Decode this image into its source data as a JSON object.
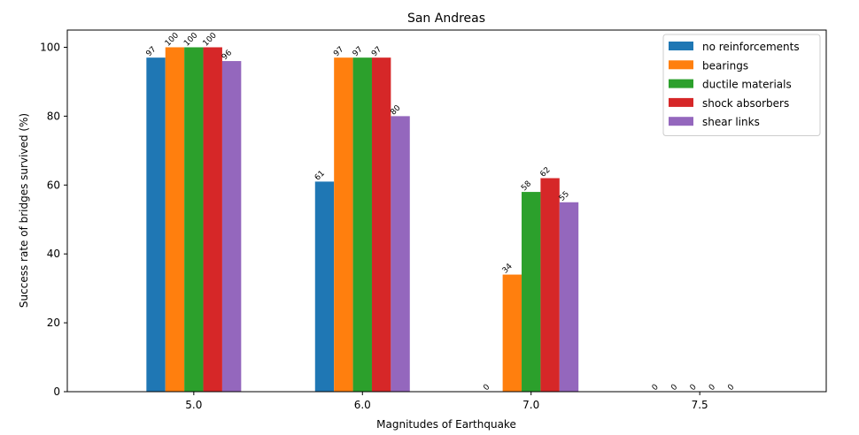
{
  "chart_data": {
    "type": "bar",
    "title": "San Andreas",
    "xlabel": "Magnitudes of Earthquake",
    "ylabel": "Success rate of bridges survived (%)",
    "categories": [
      "5.0",
      "6.0",
      "7.0",
      "7.5"
    ],
    "yticks": [
      "0",
      "20",
      "40",
      "60",
      "80",
      "100"
    ],
    "ylim": [
      0,
      105
    ],
    "legend_position": "top-right",
    "grid": false,
    "series": [
      {
        "name": "no reinforcements",
        "color": "#1f77b4",
        "values": [
          97,
          61,
          0,
          0
        ],
        "labels": [
          "97",
          "61",
          "0",
          "0"
        ]
      },
      {
        "name": "bearings",
        "color": "#ff7f0e",
        "values": [
          100,
          97,
          34,
          0
        ],
        "labels": [
          "100",
          "97",
          "34",
          "0"
        ]
      },
      {
        "name": "ductile materials",
        "color": "#2ca02c",
        "values": [
          100,
          97,
          58,
          0
        ],
        "labels": [
          "100",
          "97",
          "58",
          "0"
        ]
      },
      {
        "name": "shock absorbers",
        "color": "#d62728",
        "values": [
          100,
          97,
          62,
          0
        ],
        "labels": [
          "100",
          "97",
          "62",
          "0"
        ]
      },
      {
        "name": "shear links",
        "color": "#9467bd",
        "values": [
          96,
          80,
          55,
          0
        ],
        "labels": [
          "96",
          "80",
          "55",
          "0"
        ]
      }
    ]
  }
}
